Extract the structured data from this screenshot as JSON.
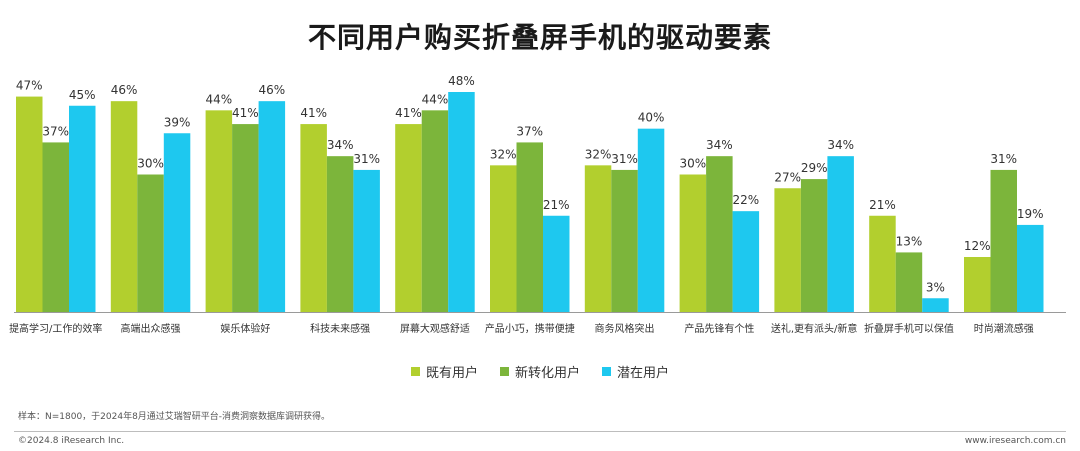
{
  "colors": {
    "series": [
      "#b2cf2e",
      "#7cb53b",
      "#1ec8ef"
    ],
    "axis": "#9a9a9a"
  },
  "chart_data": {
    "type": "bar",
    "title": "不同用户购买折叠屏手机的驱动要素",
    "categories": [
      "提高学习/工作的效率",
      "高端出众感强",
      "娱乐体验好",
      "科技未来感强",
      "屏幕大观感舒适",
      "产品小巧，携带便捷",
      "商务风格突出",
      "产品先锋有个性",
      "送礼,更有派头/新意",
      "折叠屏手机可以保值",
      "时尚潮流感强"
    ],
    "series": [
      {
        "name": "既有用户",
        "values": [
          47,
          46,
          44,
          41,
          41,
          32,
          32,
          30,
          27,
          21,
          12
        ]
      },
      {
        "name": "新转化用户",
        "values": [
          37,
          30,
          41,
          34,
          44,
          37,
          31,
          34,
          29,
          13,
          31
        ]
      },
      {
        "name": "潜在用户",
        "values": [
          45,
          39,
          46,
          31,
          48,
          21,
          40,
          22,
          34,
          3,
          19
        ]
      }
    ],
    "value_suffix": "%",
    "ylim": [
      0,
      48
    ],
    "legend_position": "bottom",
    "grid": false
  },
  "note": "样本：N=1800，于2024年8月通过艾瑞智研平台-消费洞察数据库调研获得。",
  "footer": {
    "left": "©2024.8 iResearch Inc.",
    "right": "www.iresearch.com.cn"
  }
}
